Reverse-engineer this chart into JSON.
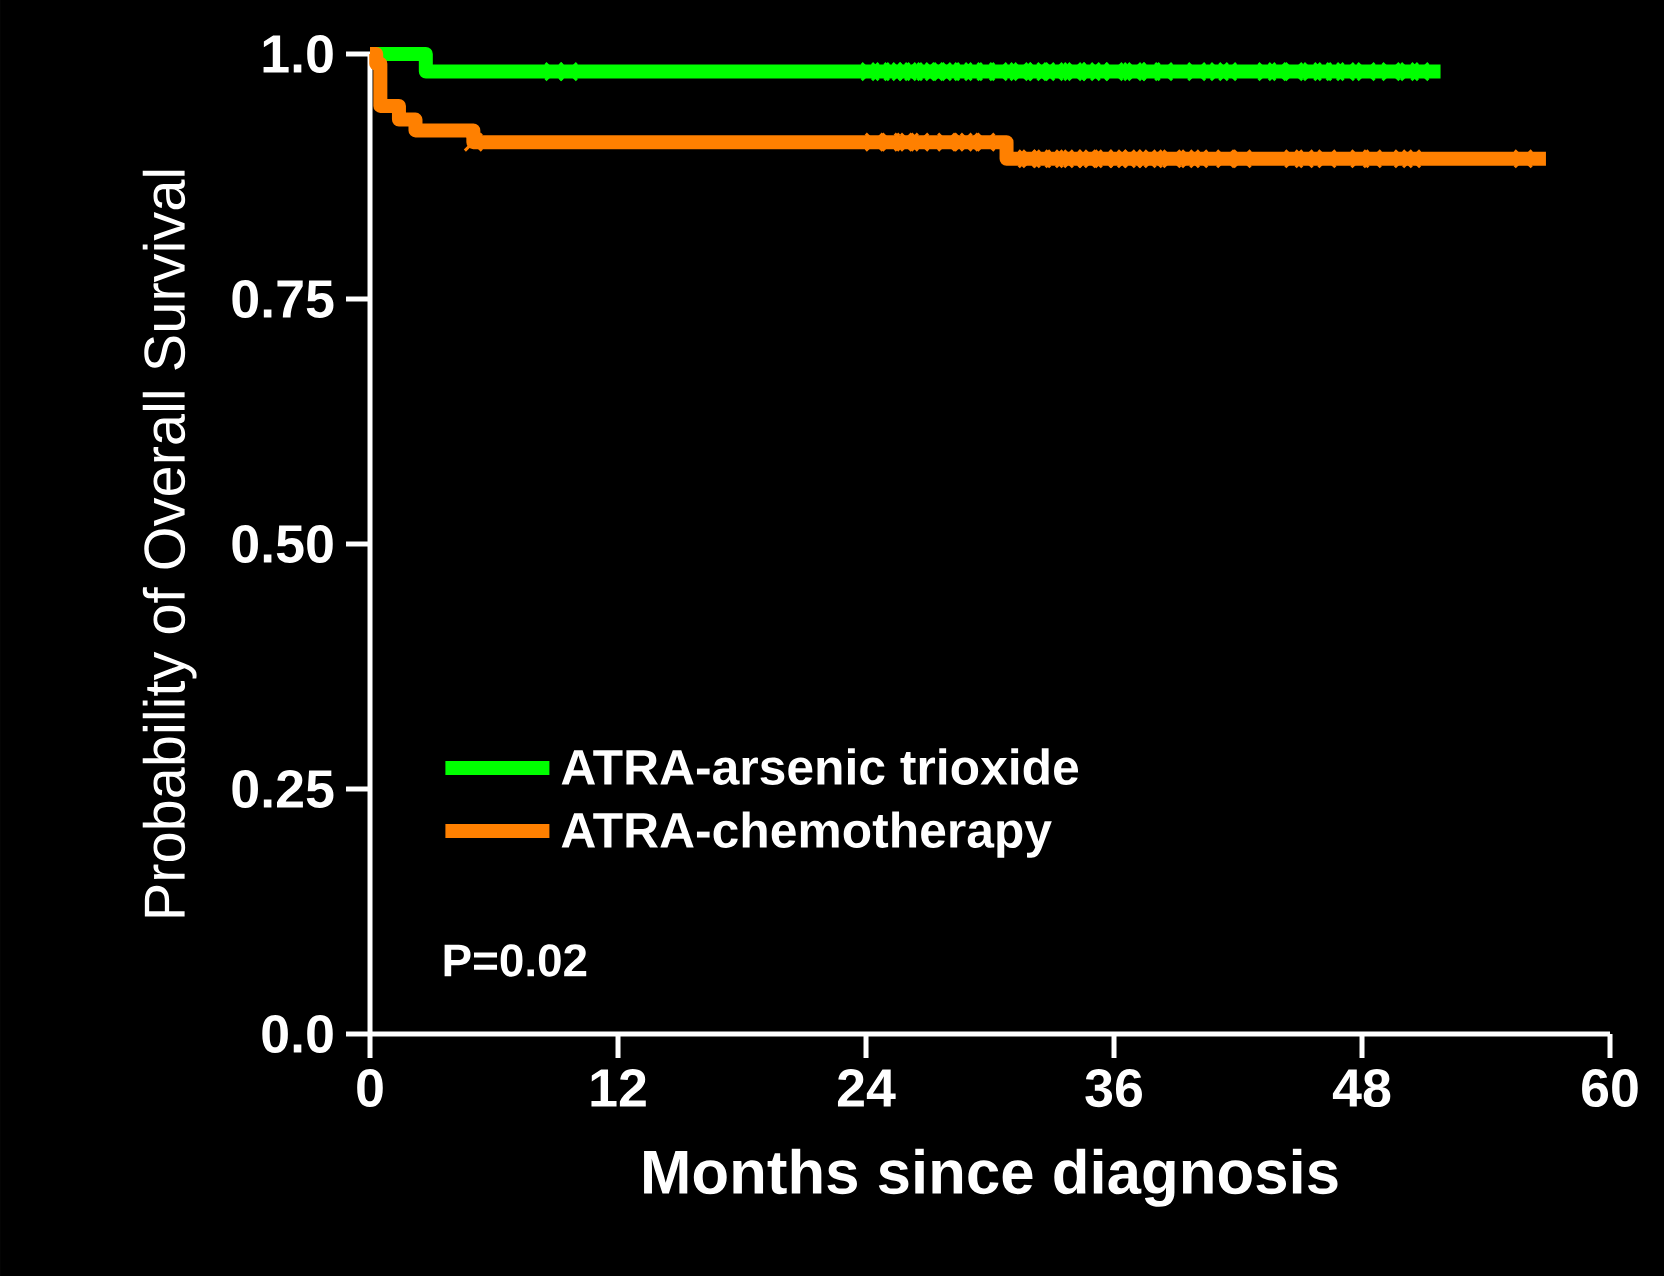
{
  "chart_data": {
    "type": "step",
    "xlabel": "Months since diagnosis",
    "ylabel": "Probability of Overall Survival",
    "xlim": [
      0,
      60
    ],
    "xticks": [
      0,
      12,
      24,
      36,
      48,
      60
    ],
    "ylim": [
      0,
      1.0
    ],
    "yticks": [
      {
        "value": 0,
        "label": "0.0"
      },
      {
        "value": 0.25,
        "label": "0.25"
      },
      {
        "value": 0.5,
        "label": "0.50"
      },
      {
        "value": 0.75,
        "label": "0.75"
      },
      {
        "value": 1.0,
        "label": "1.0"
      }
    ],
    "grid": false,
    "legend": "bottom left",
    "line_style": "solid",
    "marker": "none",
    "series": [
      {
        "name": "ATRA-arsenic trioxide",
        "color": "#00ff00",
        "x": [
          0,
          2.7,
          51.8
        ],
        "values": [
          1.0,
          0.982,
          0.982
        ]
      },
      {
        "name": "ATRA-chemotherapy",
        "color": "#ff8000",
        "x": [
          0,
          0.3,
          0.5,
          1.4,
          2.2,
          5.0,
          30.8,
          56.9
        ],
        "values": [
          1.0,
          0.99,
          0.947,
          0.933,
          0.922,
          0.91,
          0.893,
          0.893
        ]
      },
      {
        "type": "scatter",
        "marker": "cross",
        "color": "#00ff00",
        "x": [
          8.9,
          9.6,
          24.2,
          24.7,
          25.3,
          25.7,
          26.0,
          26.3,
          26.9,
          27.3,
          27.7,
          28.1,
          28.7,
          29.2,
          29.8,
          30.4,
          31.4,
          31.6,
          32.3,
          32.7,
          33.1,
          34.0,
          34.2,
          34.9,
          35.3,
          36.0,
          36.9,
          37.1,
          37.8,
          38.4,
          40.0,
          41.1,
          41.5,
          43.4,
          43.9,
          44.7,
          45.6,
          46.1,
          46.7,
          47.2,
          48.2,
          49.4,
          50.3,
          50.8
        ],
        "values": [
          0.982,
          0.982,
          0.982,
          0.982,
          0.982,
          0.982,
          0.982,
          0.982,
          0.982,
          0.982,
          0.982,
          0.982,
          0.982,
          0.982,
          0.982,
          0.982,
          0.982,
          0.982,
          0.982,
          0.982,
          0.982,
          0.982,
          0.982,
          0.982,
          0.982,
          0.982,
          0.982,
          0.982,
          0.982,
          0.982,
          0.982,
          0.982,
          0.982,
          0.982,
          0.982,
          0.982,
          0.982,
          0.982,
          0.982,
          0.982,
          0.982,
          0.982,
          0.982,
          0.982
        ]
      },
      {
        "type": "scatter",
        "marker": "cross",
        "color": "#ff8000",
        "x": [
          5.0,
          24.4,
          25.2,
          25.8,
          26.1,
          26.6,
          27.9,
          28.7,
          29.0,
          29.8,
          31.8,
          32.0,
          32.5,
          33.1,
          33.6,
          34.0,
          34.7,
          35.0,
          35.5,
          36.2,
          36.6,
          36.9,
          37.6,
          37.9,
          38.8,
          39.7,
          40.1,
          41.4,
          42.2,
          44.7,
          45.2,
          46.3,
          47.9,
          48.5,
          50.0,
          50.4,
          55.8
        ],
        "values": [
          0.91,
          0.91,
          0.91,
          0.91,
          0.91,
          0.91,
          0.91,
          0.91,
          0.91,
          0.91,
          0.893,
          0.893,
          0.893,
          0.893,
          0.893,
          0.893,
          0.893,
          0.893,
          0.893,
          0.893,
          0.893,
          0.893,
          0.893,
          0.893,
          0.893,
          0.893,
          0.893,
          0.893,
          0.893,
          0.893,
          0.893,
          0.893,
          0.893,
          0.893,
          0.893,
          0.893,
          0.893
        ]
      }
    ],
    "annotations": [
      "P=0.02"
    ]
  }
}
